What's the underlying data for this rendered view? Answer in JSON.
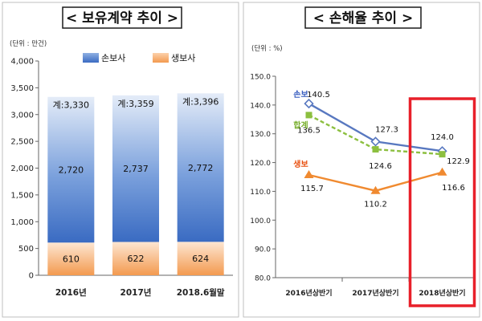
{
  "colors": {
    "nonlife": "#4a78c8",
    "life": "#f5a35c",
    "total": "#8cbf3f",
    "nonlife_line": "#5878c0",
    "life_line": "#f08a30",
    "highlight": "#e8202a"
  },
  "chart_data": [
    {
      "type": "bar",
      "title": "< 보유계약 추이 >",
      "unit_label": "(단위 : 만건)",
      "categories": [
        "2016년",
        "2017년",
        "2018.6월말"
      ],
      "series": [
        {
          "name": "손보사",
          "values": [
            2720,
            2737,
            2772
          ],
          "labels": [
            "2,720",
            "2,737",
            "2,772"
          ]
        },
        {
          "name": "생보사",
          "values": [
            610,
            622,
            624
          ],
          "labels": [
            "610",
            "622",
            "624"
          ]
        }
      ],
      "totals": [
        "계:3,330",
        "계:3,359",
        "계:3,396"
      ],
      "ylim": [
        0,
        4000
      ],
      "yticks": [
        0,
        500,
        1000,
        1500,
        2000,
        2500,
        3000,
        3500,
        4000
      ],
      "ytick_labels": [
        "0",
        "500",
        "1,000",
        "1,500",
        "2,000",
        "2,500",
        "3,000",
        "3,500",
        "4,000"
      ],
      "legend_position": "top-center",
      "stacked": true
    },
    {
      "type": "line",
      "title": "< 손해율 추이 >",
      "unit_label": "(단위 : %)",
      "categories": [
        "2016년상반기",
        "2017년상반기",
        "2018년상반기"
      ],
      "series": [
        {
          "name": "손보",
          "values": [
            140.5,
            127.3,
            124.0
          ],
          "labels": [
            "140.5",
            "127.3",
            "124.0"
          ]
        },
        {
          "name": "합계",
          "values": [
            136.5,
            124.6,
            122.9
          ],
          "labels": [
            "136.5",
            "124.6",
            "122.9"
          ]
        },
        {
          "name": "생보",
          "values": [
            115.7,
            110.2,
            116.6
          ],
          "labels": [
            "115.7",
            "110.2",
            "116.6"
          ]
        }
      ],
      "ylim": [
        80,
        150
      ],
      "yticks": [
        80,
        90,
        100,
        110,
        120,
        130,
        140,
        150
      ],
      "ytick_labels": [
        "80.0",
        "90.0",
        "100.0",
        "110.0",
        "120.0",
        "130.0",
        "140.0",
        "150.0"
      ],
      "highlight_category": "2018년상반기"
    }
  ]
}
